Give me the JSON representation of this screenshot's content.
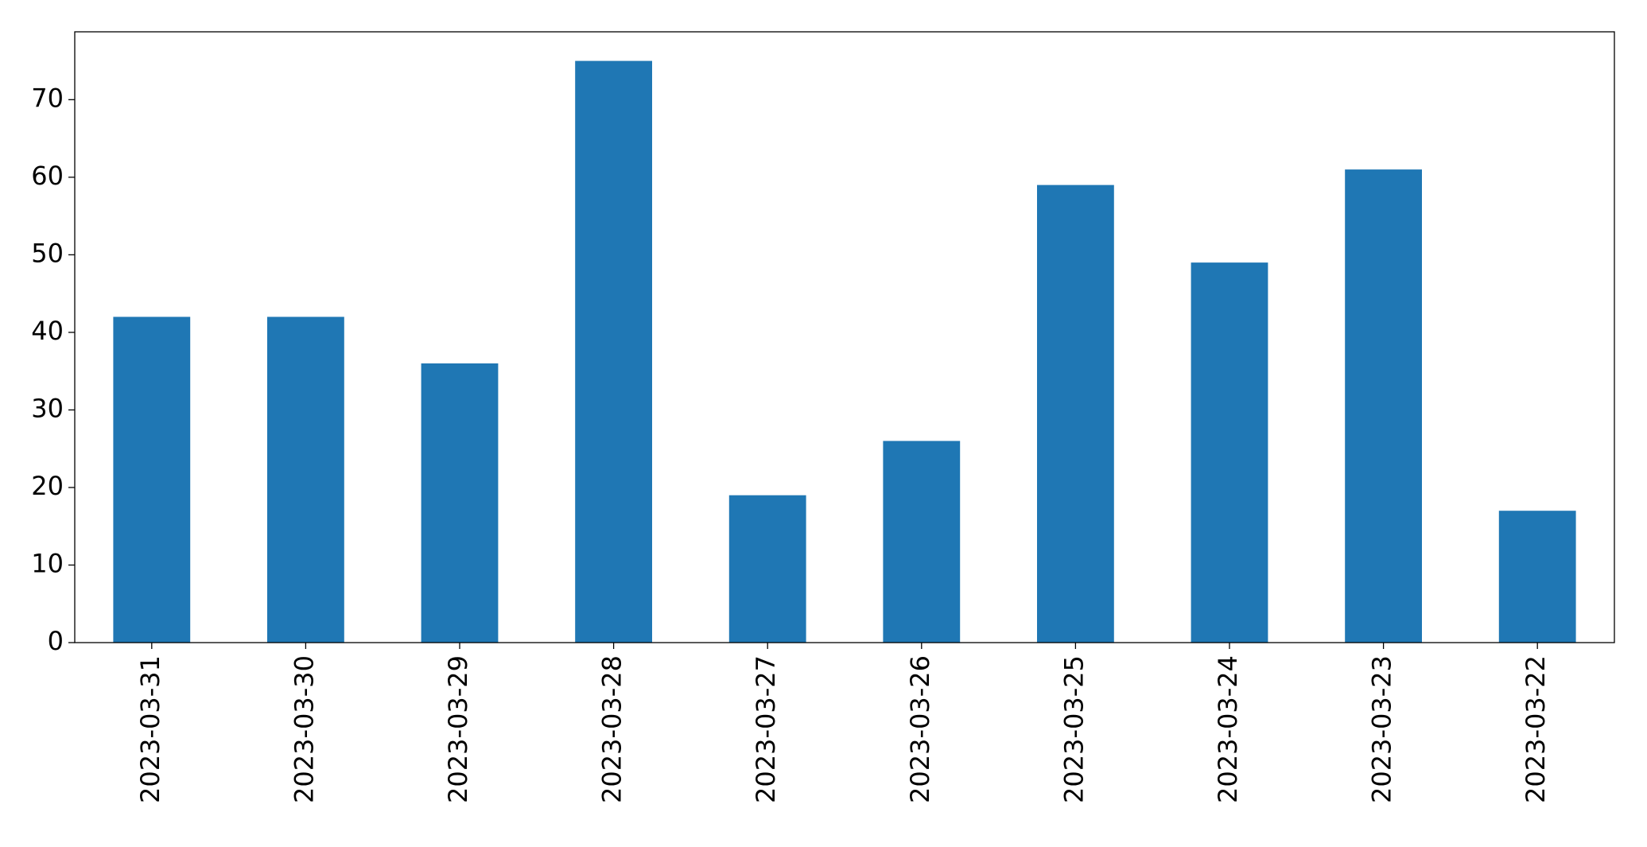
{
  "chart_data": {
    "type": "bar",
    "categories": [
      "2023-03-31",
      "2023-03-30",
      "2023-03-29",
      "2023-03-28",
      "2023-03-27",
      "2023-03-26",
      "2023-03-25",
      "2023-03-24",
      "2023-03-23",
      "2023-03-22"
    ],
    "values": [
      42,
      42,
      36,
      75,
      19,
      26,
      59,
      49,
      61,
      17
    ],
    "color": "#1f77b4",
    "ylim": [
      0,
      78.75
    ],
    "yticks": [
      0,
      10,
      20,
      30,
      40,
      50,
      60,
      70
    ],
    "grid": false
  }
}
